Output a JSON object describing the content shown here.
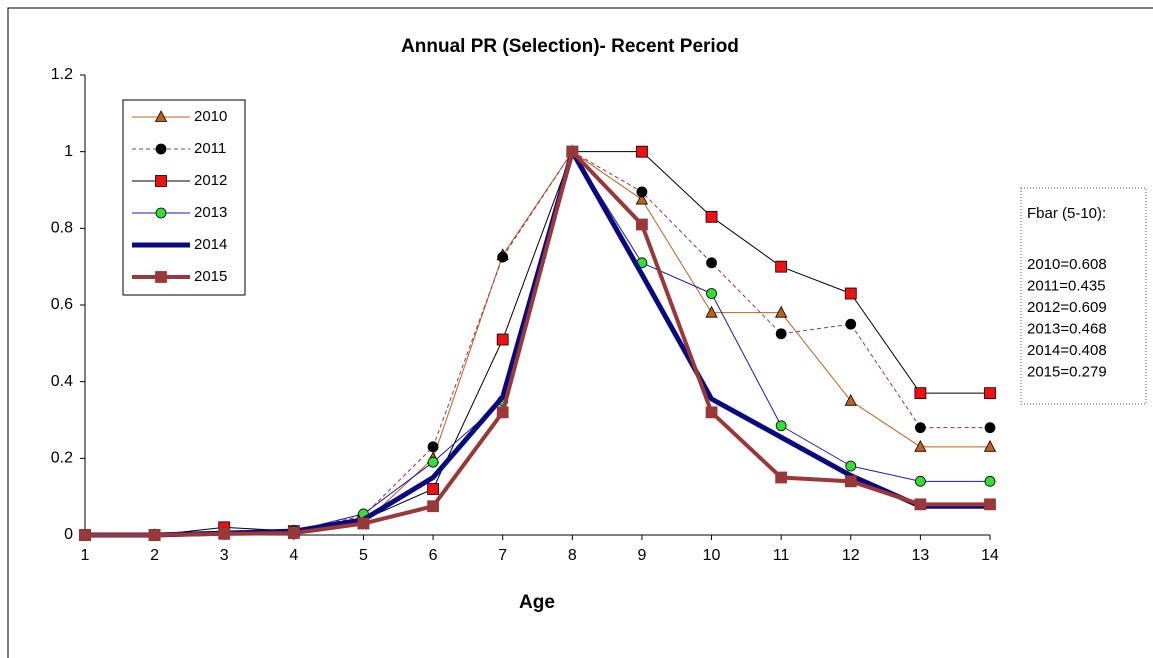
{
  "chart_data": {
    "type": "line",
    "title": "Annual PR (Selection)- Recent Period",
    "x_label": "Age",
    "x": [
      1,
      2,
      3,
      4,
      5,
      6,
      7,
      8,
      9,
      10,
      11,
      12,
      13,
      14
    ],
    "xlim": [
      1,
      14
    ],
    "xticks": [
      1,
      2,
      3,
      4,
      5,
      6,
      7,
      8,
      9,
      10,
      11,
      12,
      13,
      14
    ],
    "ylim": [
      0,
      1.2
    ],
    "yticks": [
      0,
      0.2,
      0.4,
      0.6,
      0.8,
      1,
      1.2
    ],
    "grid": false,
    "legend": "upper left",
    "series": [
      {
        "name": "2010",
        "color": "#c0601c",
        "marker": "triangle",
        "marker_fill": "#c0601c",
        "width": 1,
        "dash": false,
        "values": [
          0,
          0,
          0.005,
          0.01,
          0.03,
          0.2,
          0.73,
          1,
          0.875,
          0.58,
          0.58,
          0.35,
          0.23,
          0.23
        ]
      },
      {
        "name": "2011",
        "color": "#993355",
        "marker": "circle",
        "marker_fill": "#000000",
        "width": 1,
        "dash": true,
        "values": [
          0,
          0,
          0.01,
          0.01,
          0.05,
          0.23,
          0.725,
          1,
          0.895,
          0.71,
          0.525,
          0.55,
          0.28,
          0.28
        ]
      },
      {
        "name": "2012",
        "color": "#000000",
        "marker": "square",
        "marker_fill": "#ee1111",
        "width": 1,
        "dash": false,
        "values": [
          0,
          0,
          0.02,
          0.01,
          0.04,
          0.12,
          0.51,
          1,
          1,
          0.83,
          0.7,
          0.63,
          0.37,
          0.37
        ]
      },
      {
        "name": "2013",
        "color": "#1a1aa8",
        "marker": "circle",
        "marker_fill": "#33dd33",
        "width": 1,
        "dash": false,
        "values": [
          0,
          0,
          0.005,
          0.01,
          0.055,
          0.19,
          0.35,
          1,
          0.71,
          0.63,
          0.285,
          0.18,
          0.14,
          0.14
        ]
      },
      {
        "name": "2014",
        "color": "#0a0a80",
        "marker": "none",
        "marker_fill": "#0a0a80",
        "width": 5,
        "dash": false,
        "values": [
          0,
          0,
          0.005,
          0.01,
          0.04,
          0.15,
          0.36,
          1,
          0.68,
          0.355,
          0.255,
          0.155,
          0.075,
          0.075
        ]
      },
      {
        "name": "2015",
        "color": "#993838",
        "marker": "square",
        "marker_fill": "#993838",
        "width": 4,
        "dash": false,
        "values": [
          0,
          0,
          0.003,
          0.005,
          0.03,
          0.075,
          0.32,
          1,
          0.81,
          0.32,
          0.15,
          0.14,
          0.08,
          0.08
        ]
      }
    ],
    "annotation": {
      "title": "Fbar (5-10):",
      "lines": [
        "2010=0.608",
        "2011=0.435",
        "2012=0.609",
        "2013=0.468",
        "2014=0.408",
        "2015=0.279"
      ]
    }
  }
}
